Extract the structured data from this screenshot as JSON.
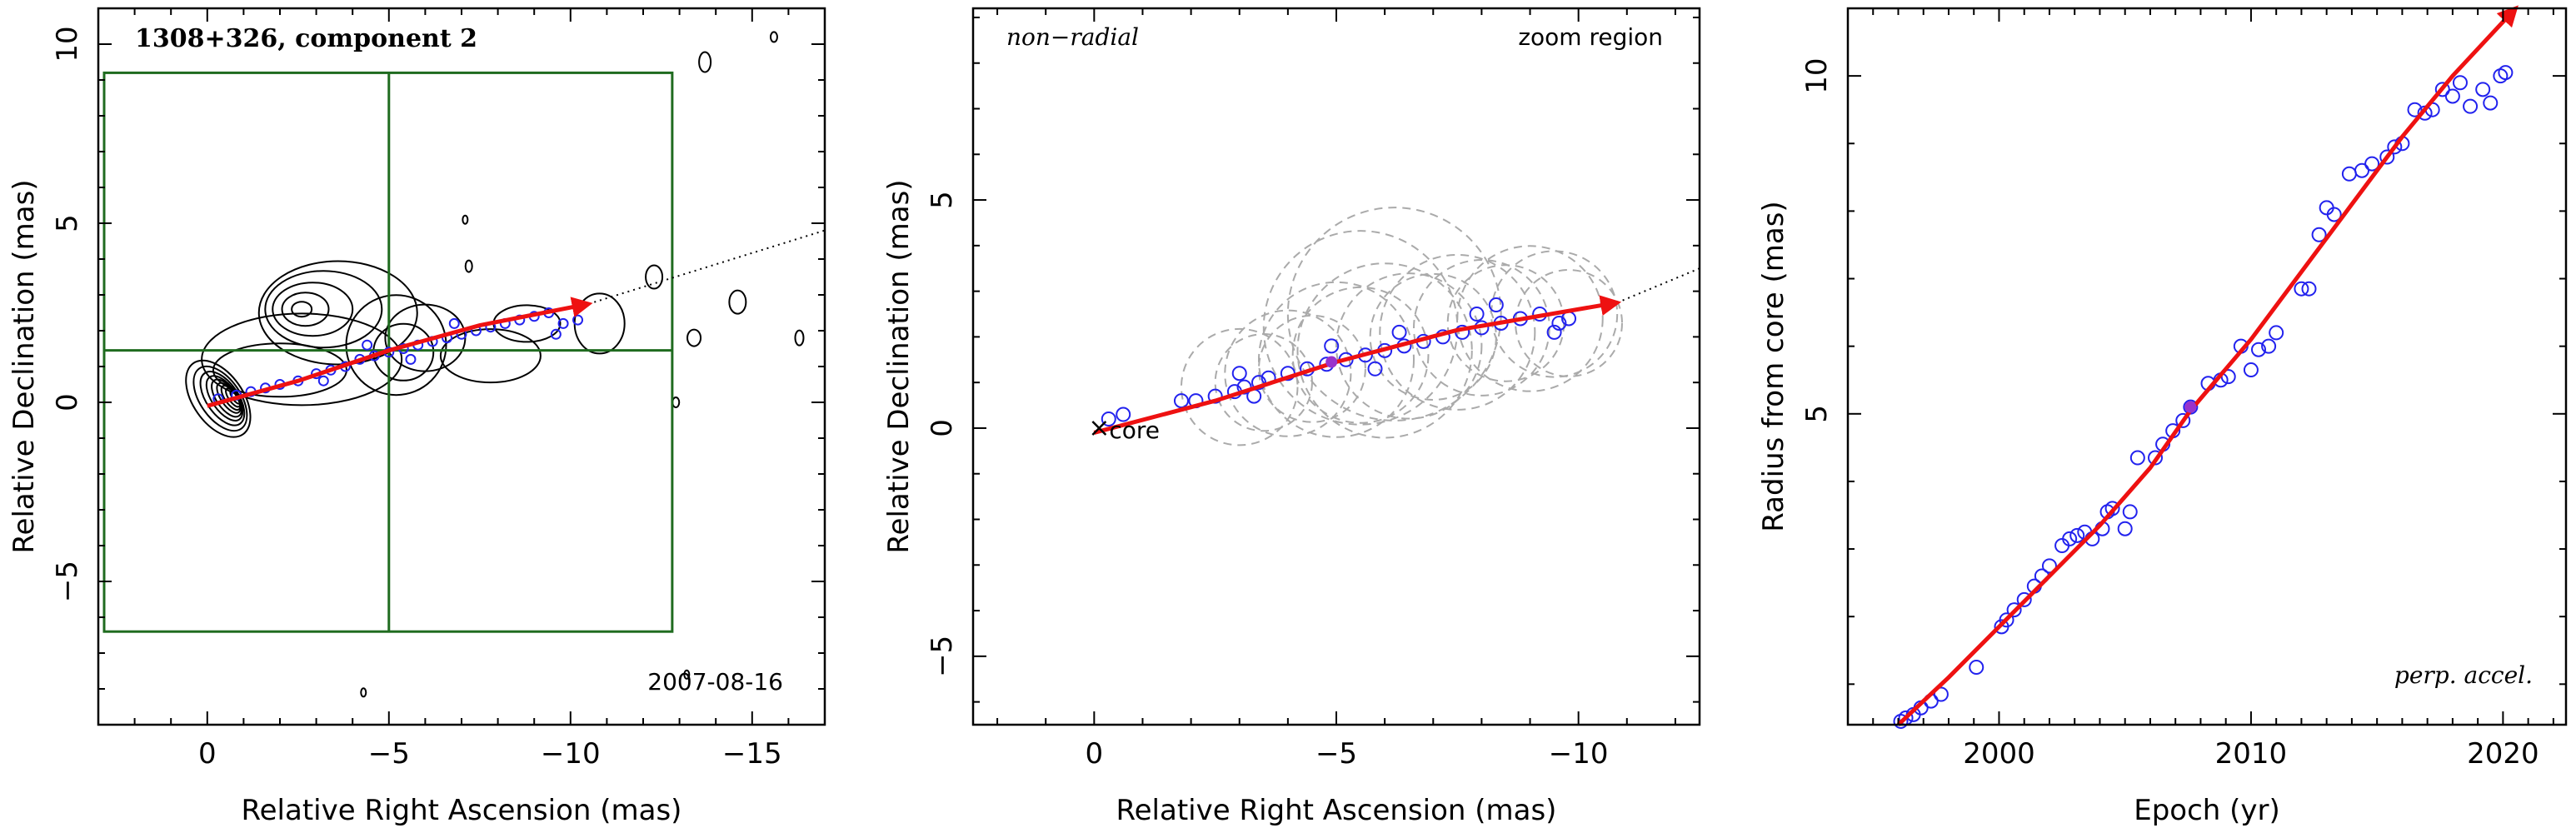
{
  "chart_data": [
    {
      "type": "scatter",
      "title": "1308+326, component 2",
      "xlabel": "Relative Right Ascension (mas)",
      "ylabel": "Relative Declination (mas)",
      "xlim": [
        3,
        -17
      ],
      "ylim": [
        -9,
        11
      ],
      "xticks": [
        0,
        -5,
        -10,
        -15
      ],
      "yticks": [
        -5,
        0,
        5,
        10
      ],
      "date_label": "2007-08-16",
      "box": {
        "x": [
          3,
          -12.8
        ],
        "y": [
          -6.4,
          9.2
        ]
      },
      "crosshair": {
        "x": -5.0,
        "y": 1.45
      },
      "positions": [
        [
          -0.3,
          0.1
        ],
        [
          -0.8,
          0.2
        ],
        [
          -1.2,
          0.3
        ],
        [
          -1.6,
          0.4
        ],
        [
          -2.0,
          0.5
        ],
        [
          -2.5,
          0.6
        ],
        [
          -3.0,
          0.8
        ],
        [
          -3.4,
          0.9
        ],
        [
          -3.8,
          1.0
        ],
        [
          -4.2,
          1.2
        ],
        [
          -4.6,
          1.3
        ],
        [
          -5.0,
          1.4
        ],
        [
          -5.4,
          1.5
        ],
        [
          -5.8,
          1.6
        ],
        [
          -6.2,
          1.7
        ],
        [
          -6.6,
          1.8
        ],
        [
          -7.0,
          1.9
        ],
        [
          -7.4,
          2.0
        ],
        [
          -7.8,
          2.1
        ],
        [
          -8.2,
          2.2
        ],
        [
          -8.6,
          2.3
        ],
        [
          -9.0,
          2.4
        ],
        [
          -9.4,
          2.5
        ],
        [
          -9.8,
          2.2
        ],
        [
          -10.2,
          2.3
        ],
        [
          -3.2,
          0.6
        ],
        [
          -4.4,
          1.6
        ],
        [
          -5.6,
          1.2
        ],
        [
          -6.8,
          2.2
        ],
        [
          -9.6,
          1.9
        ]
      ],
      "fit": [
        [
          0,
          -0.1
        ],
        [
          -2.5,
          0.6
        ],
        [
          -5,
          1.45
        ],
        [
          -7.5,
          2.15
        ],
        [
          -10.5,
          2.75
        ]
      ],
      "extrapolation": [
        [
          -10.5,
          2.75
        ],
        [
          -17,
          4.8
        ]
      ]
    },
    {
      "type": "scatter",
      "xlabel": "Relative Right Ascension (mas)",
      "ylabel": "Relative Declination (mas)",
      "xlim": [
        2.5,
        -12.5
      ],
      "ylim": [
        -6.5,
        9.2
      ],
      "xticks": [
        0,
        -5,
        -10
      ],
      "yticks": [
        -5,
        0,
        5
      ],
      "annotation_left": "non−radial",
      "annotation_right": "zoom region",
      "core_label": "core",
      "core": [
        0,
        0
      ],
      "positions": [
        [
          -0.3,
          0.2
        ],
        [
          -0.6,
          0.3
        ],
        [
          -1.8,
          0.6
        ],
        [
          -2.1,
          0.6
        ],
        [
          -2.5,
          0.7
        ],
        [
          -2.9,
          0.8
        ],
        [
          -3.1,
          0.9
        ],
        [
          -3.4,
          1.0
        ],
        [
          -3.6,
          1.1
        ],
        [
          -4.0,
          1.2
        ],
        [
          -4.4,
          1.3
        ],
        [
          -4.8,
          1.4
        ],
        [
          -5.2,
          1.5
        ],
        [
          -5.6,
          1.6
        ],
        [
          -6.0,
          1.7
        ],
        [
          -6.4,
          1.8
        ],
        [
          -6.8,
          1.9
        ],
        [
          -7.2,
          2.0
        ],
        [
          -7.6,
          2.1
        ],
        [
          -8.0,
          2.2
        ],
        [
          -8.4,
          2.3
        ],
        [
          -8.8,
          2.4
        ],
        [
          -9.2,
          2.5
        ],
        [
          -9.6,
          2.3
        ],
        [
          -9.8,
          2.4
        ],
        [
          -3.3,
          0.7
        ],
        [
          -5.8,
          1.3
        ],
        [
          -6.3,
          2.1
        ],
        [
          -8.3,
          2.7
        ],
        [
          -9.5,
          2.1
        ],
        [
          -3.0,
          1.2
        ],
        [
          -4.9,
          1.8
        ],
        [
          -7.9,
          2.5
        ]
      ],
      "gray_circles": [
        [
          -3.0,
          0.9,
          1.2
        ],
        [
          -3.5,
          1.0,
          1.0
        ],
        [
          -4.0,
          1.2,
          1.3
        ],
        [
          -4.5,
          1.3,
          1.1
        ],
        [
          -5.0,
          1.5,
          1.6
        ],
        [
          -5.5,
          1.6,
          1.4
        ],
        [
          -6.0,
          1.7,
          1.8
        ],
        [
          -6.5,
          1.8,
          1.5
        ],
        [
          -7.0,
          2.0,
          1.3
        ],
        [
          -7.5,
          2.1,
          1.6
        ],
        [
          -8.0,
          2.2,
          1.4
        ],
        [
          -8.5,
          2.3,
          1.2
        ],
        [
          -9.0,
          2.4,
          1.5
        ],
        [
          -9.5,
          2.5,
          1.3
        ],
        [
          -9.8,
          2.3,
          1.1
        ],
        [
          -5.5,
          2.2,
          2.0
        ],
        [
          -6.2,
          2.5,
          2.2
        ]
      ],
      "fit": [
        [
          0,
          -0.1
        ],
        [
          -2.5,
          0.6
        ],
        [
          -5,
          1.45
        ],
        [
          -7.5,
          2.15
        ],
        [
          -10.8,
          2.75
        ]
      ],
      "extrapolation": [
        [
          -10.8,
          2.75
        ],
        [
          -12.5,
          3.5
        ]
      ]
    },
    {
      "type": "scatter",
      "xlabel": "Epoch (yr)",
      "ylabel": "Radius from core (mas)",
      "xlim": [
        1994,
        2022.5
      ],
      "ylim": [
        0.4,
        11.0
      ],
      "xticks": [
        2000,
        2010,
        2020
      ],
      "yticks": [
        5,
        10
      ],
      "annotation": "perp. accel.",
      "points": [
        [
          1996.1,
          0.45
        ],
        [
          1996.3,
          0.5
        ],
        [
          1996.6,
          0.55
        ],
        [
          1996.9,
          0.65
        ],
        [
          1997.3,
          0.75
        ],
        [
          1997.7,
          0.85
        ],
        [
          1999.1,
          1.25
        ],
        [
          2000.1,
          1.85
        ],
        [
          2000.3,
          1.95
        ],
        [
          2000.6,
          2.1
        ],
        [
          2001.0,
          2.25
        ],
        [
          2001.4,
          2.45
        ],
        [
          2001.7,
          2.6
        ],
        [
          2002.0,
          2.75
        ],
        [
          2002.5,
          3.05
        ],
        [
          2002.8,
          3.15
        ],
        [
          2003.1,
          3.2
        ],
        [
          2003.4,
          3.25
        ],
        [
          2003.7,
          3.15
        ],
        [
          2004.1,
          3.3
        ],
        [
          2004.3,
          3.55
        ],
        [
          2004.5,
          3.6
        ],
        [
          2005.0,
          3.3
        ],
        [
          2005.2,
          3.55
        ],
        [
          2005.5,
          4.35
        ],
        [
          2006.2,
          4.35
        ],
        [
          2006.5,
          4.55
        ],
        [
          2006.9,
          4.75
        ],
        [
          2007.3,
          4.9
        ],
        [
          2007.6,
          5.1
        ],
        [
          2008.3,
          5.45
        ],
        [
          2008.8,
          5.5
        ],
        [
          2009.1,
          5.55
        ],
        [
          2009.6,
          6.0
        ],
        [
          2010.0,
          5.65
        ],
        [
          2010.3,
          5.95
        ],
        [
          2010.7,
          6.0
        ],
        [
          2011.0,
          6.2
        ],
        [
          2012.0,
          6.85
        ],
        [
          2012.3,
          6.85
        ],
        [
          2012.7,
          7.65
        ],
        [
          2013.0,
          8.05
        ],
        [
          2013.3,
          7.95
        ],
        [
          2013.9,
          8.55
        ],
        [
          2014.4,
          8.6
        ],
        [
          2014.8,
          8.7
        ],
        [
          2015.4,
          8.8
        ],
        [
          2015.7,
          8.95
        ],
        [
          2016.0,
          9.0
        ],
        [
          2016.5,
          9.5
        ],
        [
          2016.9,
          9.45
        ],
        [
          2017.2,
          9.5
        ],
        [
          2017.6,
          9.8
        ],
        [
          2018.0,
          9.7
        ],
        [
          2018.3,
          9.9
        ],
        [
          2018.7,
          9.55
        ],
        [
          2019.2,
          9.8
        ],
        [
          2019.5,
          9.6
        ],
        [
          2019.9,
          10.0
        ],
        [
          2020.1,
          10.05
        ]
      ],
      "fit": [
        [
          1996.0,
          0.4
        ],
        [
          1998.0,
          1.1
        ],
        [
          2000.0,
          1.85
        ],
        [
          2002.0,
          2.6
        ],
        [
          2004.0,
          3.35
        ],
        [
          2006.0,
          4.2
        ],
        [
          2007.6,
          5.05
        ],
        [
          2010.0,
          6.1
        ],
        [
          2012.0,
          7.1
        ],
        [
          2014.0,
          8.1
        ],
        [
          2016.0,
          9.1
        ],
        [
          2018.0,
          10.0
        ],
        [
          2020.5,
          11.0
        ]
      ],
      "marked_epoch": [
        2007.6,
        5.1
      ]
    }
  ]
}
